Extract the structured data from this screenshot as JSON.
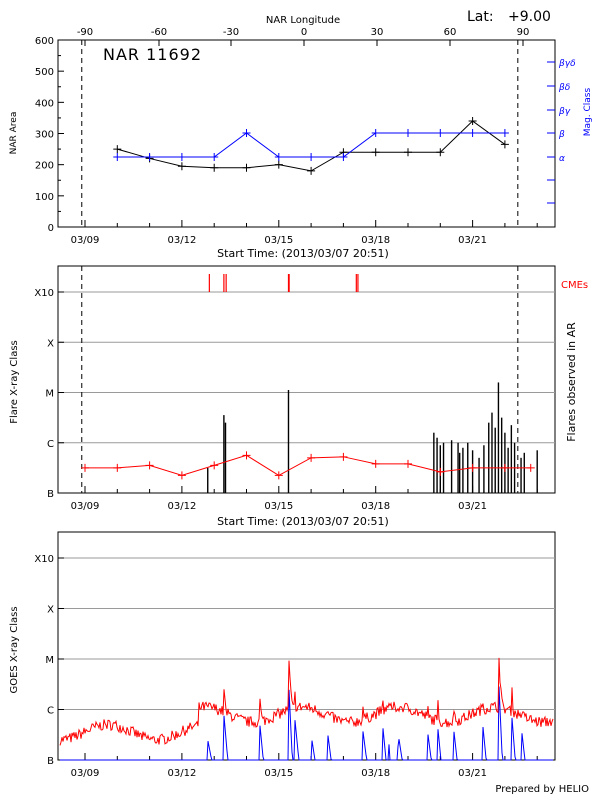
{
  "header": {
    "lat_label": "Lat:",
    "lat_value": "+9.00",
    "credit": "Prepared by HELIO"
  },
  "chart_data": [
    {
      "type": "line",
      "id": "nar",
      "title": "NAR 11692",
      "top_axis_label": "NAR Longitude",
      "top_ticks": [
        "-90",
        "-60",
        "-30",
        "0",
        "30",
        "60",
        "90"
      ],
      "x_tick_labels": [
        "03/09",
        "03/12",
        "03/15",
        "03/18",
        "03/21"
      ],
      "xlabel": "Start Time: (2013/03/07 20:51)",
      "ylabel": "NAR Area",
      "ylim": [
        0,
        600
      ],
      "y_ticks": [
        "0",
        "100",
        "200",
        "300",
        "400",
        "500",
        "600"
      ],
      "right_axis_label": "Mag. Class",
      "right_ticks": [
        "α",
        "β",
        "βγ",
        "βδ",
        "βγδ"
      ],
      "x_days": [
        10.0,
        11.0,
        12.0,
        13.0,
        14.0,
        15.0,
        16.0,
        17.0,
        18.0,
        19.0,
        20.0,
        21.0,
        22.0
      ],
      "series": [
        {
          "name": "NAR Area",
          "color": "#000000",
          "x": [
            10,
            11,
            12,
            13,
            14,
            15,
            16,
            17,
            18,
            19,
            20,
            21,
            22
          ],
          "values": [
            250,
            220,
            195,
            190,
            190,
            200,
            180,
            240,
            240,
            240,
            240,
            340,
            265
          ]
        },
        {
          "name": "Mag. Class",
          "color": "#0000ff",
          "axis": "right",
          "x": [
            10,
            11,
            12,
            13,
            14,
            15,
            16,
            17,
            18,
            19,
            20,
            21,
            22
          ],
          "values": [
            "α",
            "α",
            "α",
            "α",
            "β",
            "α",
            "α",
            "α",
            "β",
            "β",
            "β",
            "β",
            "β"
          ]
        }
      ],
      "dashed_lines_x": [
        8.9,
        22.4
      ]
    },
    {
      "type": "bar",
      "id": "flares",
      "x_tick_labels": [
        "03/09",
        "03/12",
        "03/15",
        "03/18",
        "03/21"
      ],
      "xlabel": "Start Time: (2013/03/07 20:51)",
      "ylabel": "Flare X-ray Class",
      "y_ticks": [
        "B",
        "C",
        "M",
        "X",
        "X10"
      ],
      "right_axis_label": "Flares observed in AR",
      "cme_label": "CMEs",
      "cme_times": [
        12.85,
        13.3,
        13.37,
        15.3,
        15.32,
        17.4,
        17.45
      ],
      "flares": [
        {
          "t": 12.8,
          "logc": 0.5
        },
        {
          "t": 13.3,
          "logc": 1.55
        },
        {
          "t": 13.35,
          "logc": 1.4
        },
        {
          "t": 15.3,
          "logc": 2.05
        },
        {
          "t": 19.8,
          "logc": 1.2
        },
        {
          "t": 19.9,
          "logc": 1.1
        },
        {
          "t": 20.0,
          "logc": 0.95
        },
        {
          "t": 20.1,
          "logc": 1.0
        },
        {
          "t": 20.35,
          "logc": 1.05
        },
        {
          "t": 20.55,
          "logc": 1.0
        },
        {
          "t": 20.6,
          "logc": 0.8
        },
        {
          "t": 20.7,
          "logc": 0.9
        },
        {
          "t": 20.85,
          "logc": 1.0
        },
        {
          "t": 21.0,
          "logc": 0.85
        },
        {
          "t": 21.2,
          "logc": 0.7
        },
        {
          "t": 21.35,
          "logc": 0.95
        },
        {
          "t": 21.5,
          "logc": 1.4
        },
        {
          "t": 21.6,
          "logc": 1.6
        },
        {
          "t": 21.7,
          "logc": 1.3
        },
        {
          "t": 21.8,
          "logc": 2.2
        },
        {
          "t": 21.9,
          "logc": 1.5
        },
        {
          "t": 22.0,
          "logc": 1.2
        },
        {
          "t": 22.1,
          "logc": 0.9
        },
        {
          "t": 22.2,
          "logc": 1.35
        },
        {
          "t": 22.3,
          "logc": 1.0
        },
        {
          "t": 22.5,
          "logc": 0.7
        },
        {
          "t": 22.6,
          "logc": 0.8
        },
        {
          "t": 23.0,
          "logc": 0.85
        }
      ],
      "background_series": {
        "name": "Background",
        "color": "#ff0000",
        "x": [
          9.0,
          10.0,
          11.0,
          12.0,
          13.0,
          14.0,
          15.0,
          16.0,
          17.0,
          18.0,
          19.0,
          20.0,
          21.0,
          22.0,
          22.8
        ],
        "values": [
          0.5,
          0.5,
          0.55,
          0.35,
          0.55,
          0.75,
          0.35,
          0.7,
          0.72,
          0.58,
          0.58,
          0.42,
          0.5,
          0.5,
          0.5
        ]
      },
      "dashed_lines_x": [
        8.9,
        22.4
      ]
    },
    {
      "type": "line",
      "id": "goes",
      "x_tick_labels": [
        "03/09",
        "03/12",
        "03/15",
        "03/18",
        "03/21"
      ],
      "ylabel": "GOES X-ray Class",
      "y_ticks": [
        "B",
        "C",
        "M",
        "X",
        "X10"
      ],
      "series": [
        {
          "name": "GOES long",
          "color": "#ff0000"
        },
        {
          "name": "GOES short",
          "color": "#0000ff"
        }
      ]
    }
  ]
}
